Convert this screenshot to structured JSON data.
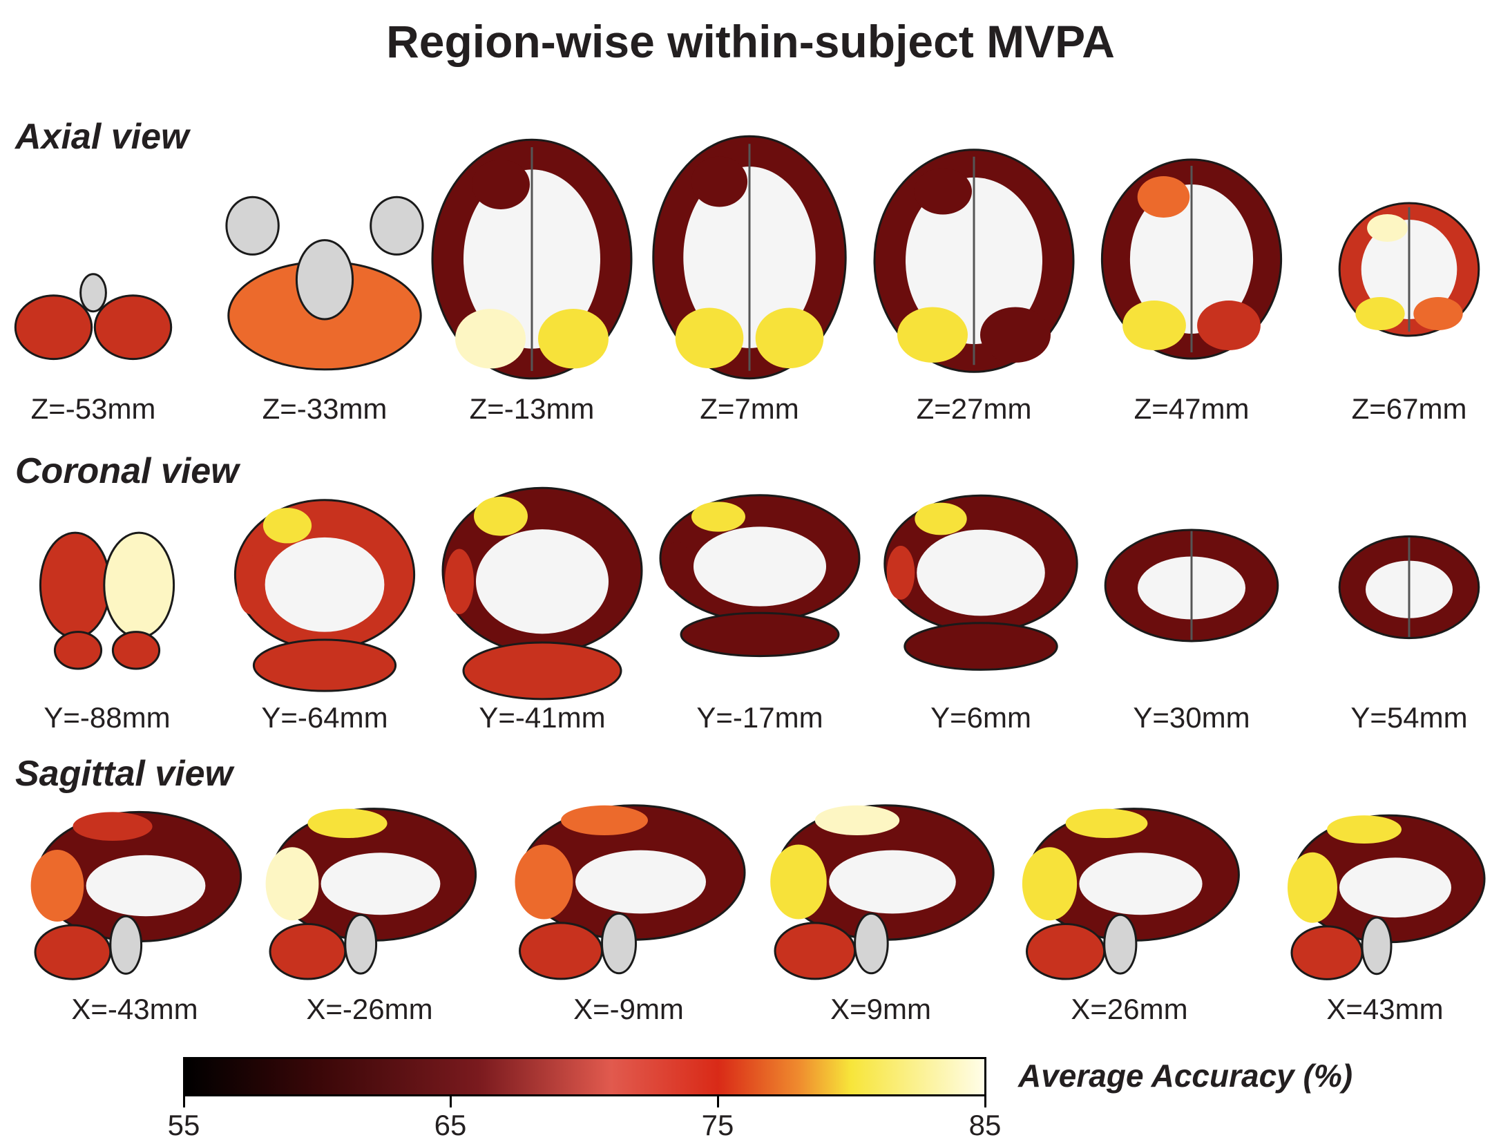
{
  "title": "Region-wise within-subject MVPA",
  "colors": {
    "brain_gray": "#d4d4d4",
    "white_matter": "#f5f5f5",
    "dark_red": "#6b0d0d",
    "red": "#c8321e",
    "orange": "#ec6a2c",
    "yellow": "#f7e23a",
    "pale_yellow": "#fdf6c3"
  },
  "views": [
    {
      "label": "Axial view",
      "slices": [
        {
          "label": "Z=-53mm",
          "shape": "cerebellum",
          "heat": [
            0.55,
            0.6,
            0.5,
            0.4
          ]
        },
        {
          "label": "Z=-33mm",
          "shape": "temporal",
          "heat": [
            0.62,
            0.55,
            0.5,
            0.7
          ]
        },
        {
          "label": "Z=-13mm",
          "shape": "axial",
          "heat": [
            0.95,
            0.2,
            0.3,
            0.9
          ]
        },
        {
          "label": "Z=7mm",
          "shape": "axial",
          "heat": [
            0.9,
            0.25,
            0.35,
            0.85
          ]
        },
        {
          "label": "Z=27mm",
          "shape": "axial",
          "heat": [
            0.85,
            0.35,
            0.3,
            0.3
          ]
        },
        {
          "label": "Z=47mm",
          "shape": "axial",
          "heat": [
            0.9,
            0.7,
            0.3,
            0.5
          ]
        },
        {
          "label": "Z=67mm",
          "shape": "small",
          "heat": [
            0.85,
            0.95,
            0.6,
            0.7
          ]
        }
      ]
    },
    {
      "label": "Coronal view",
      "slices": [
        {
          "label": "Y=-88mm",
          "shape": "occipital",
          "heat": [
            0.95,
            0.7,
            0.5,
            0.55
          ]
        },
        {
          "label": "Y=-64mm",
          "shape": "coronal",
          "heat": [
            0.85,
            0.6,
            0.55,
            0.6
          ]
        },
        {
          "label": "Y=-41mm",
          "shape": "coronal",
          "heat": [
            0.8,
            0.45,
            0.35,
            0.5
          ]
        },
        {
          "label": "Y=-17mm",
          "shape": "coronal",
          "heat": [
            0.85,
            0.3,
            0.3,
            0.2
          ]
        },
        {
          "label": "Y=6mm",
          "shape": "coronal",
          "heat": [
            0.85,
            0.55,
            0.3,
            0.2
          ]
        },
        {
          "label": "Y=30mm",
          "shape": "frontal",
          "heat": [
            0.3,
            0.25,
            0.2,
            0.2
          ]
        },
        {
          "label": "Y=54mm",
          "shape": "frontal-small",
          "heat": [
            0.3,
            0.25,
            0.2,
            0.2
          ]
        }
      ]
    },
    {
      "label": "Sagittal view",
      "slices": [
        {
          "label": "X=-43mm",
          "shape": "sagittal",
          "heat": [
            0.75,
            0.5,
            0.35,
            0.6
          ]
        },
        {
          "label": "X=-26mm",
          "shape": "sagittal",
          "heat": [
            0.95,
            0.85,
            0.35,
            0.6
          ]
        },
        {
          "label": "X=-9mm",
          "shape": "sagittal",
          "heat": [
            0.75,
            0.65,
            0.35,
            0.55
          ]
        },
        {
          "label": "X=9mm",
          "shape": "sagittal",
          "heat": [
            0.9,
            0.95,
            0.35,
            0.55
          ]
        },
        {
          "label": "X=26mm",
          "shape": "sagittal",
          "heat": [
            0.9,
            0.85,
            0.4,
            0.6
          ]
        },
        {
          "label": "X=43mm",
          "shape": "sagittal",
          "heat": [
            0.8,
            0.9,
            0.4,
            0.6
          ]
        }
      ]
    }
  ],
  "colorbar": {
    "title": "Average Accuracy (%)",
    "min": 55,
    "max": 85,
    "ticks": [
      "55",
      "65",
      "75",
      "85"
    ],
    "tick_values": [
      55,
      65,
      75,
      85
    ],
    "stops": [
      {
        "value": 55,
        "color": "#000000"
      },
      {
        "value": 60,
        "color": "#3a0708"
      },
      {
        "value": 66,
        "color": "#7a1a1e"
      },
      {
        "value": 71,
        "color": "#e15a4e"
      },
      {
        "value": 75,
        "color": "#d92a17"
      },
      {
        "value": 78,
        "color": "#ef8a2e"
      },
      {
        "value": 80,
        "color": "#f7e53a"
      },
      {
        "value": 85,
        "color": "#fffde8"
      }
    ]
  }
}
